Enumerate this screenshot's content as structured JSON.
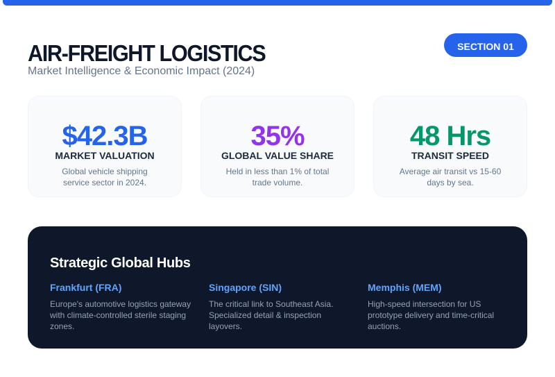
{
  "header": {
    "title": "AIR-FREIGHT LOGISTICS",
    "subtitle": "Market Intelligence & Economic Impact (2024)",
    "badge": "SECTION 01"
  },
  "colors": {
    "accent": "#2563eb",
    "blue": "#2563eb",
    "purple": "#9333ea",
    "green": "#059669",
    "panel": "#0f172a",
    "hub_name": "#60a5fa"
  },
  "stats": [
    {
      "value": "$42.3B",
      "label": "MARKET VALUATION",
      "description": "Global vehicle shipping service sector in 2024.",
      "color": "#2563eb"
    },
    {
      "value": "35%",
      "label": "GLOBAL VALUE SHARE",
      "description": "Held in less than 1% of total trade volume.",
      "color": "#9333ea"
    },
    {
      "value": "48 Hrs",
      "label": "TRANSIT SPEED",
      "description": "Average air transit vs 15-60 days by sea.",
      "color": "#059669"
    }
  ],
  "hubs": {
    "title": "Strategic Global Hubs",
    "items": [
      {
        "name": "Frankfurt (FRA)",
        "description": "Europe's automotive logistics gateway with climate-controlled sterile staging zones."
      },
      {
        "name": "Singapore (SIN)",
        "description": "The critical link to Southeast Asia. Specialized detail & inspection layovers."
      },
      {
        "name": "Memphis (MEM)",
        "description": "High-speed intersection for US prototype delivery and time-critical auctions."
      }
    ]
  }
}
